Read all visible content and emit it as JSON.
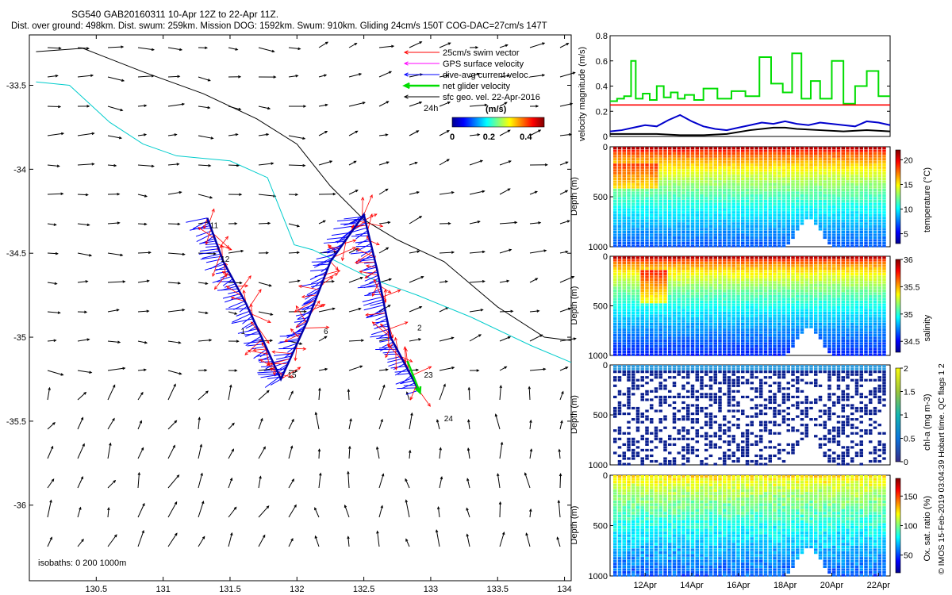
{
  "header": {
    "title": "SG540 GAB20160311 10-Apr 12Z to 22-Apr 11Z.",
    "summary": "Dist. over ground: 498km. Dist. swum: 259km. Mission DOG: 1592km. Swum: 910km. Gliding 24cm/s 150T COG-DAC=27cm/s 147T"
  },
  "side_note": "© IMOS 15-Feb-2019 03:04:39 Hobart time. QC flags 1  2",
  "map": {
    "legend": [
      {
        "label": "25cm/s swim vector",
        "color": "#ff0000",
        "style": "thin-arrow"
      },
      {
        "label": "GPS surface velocity",
        "color": "#ff00ff",
        "style": "thin-arrow"
      },
      {
        "label": "dive-avg current veloc.",
        "color": "#0000ff",
        "style": "thin-arrow"
      },
      {
        "label": "net glider velocity",
        "color": "#00dd00",
        "style": "thick-arrow"
      },
      {
        "label": "sfc geo. vel. 22-Apr-2016",
        "color": "#000000",
        "style": "thin-arrow"
      }
    ],
    "legend_24h": "24h",
    "colorbar": {
      "title": "(m/s)",
      "ticks": [
        "0",
        "0.2",
        "0.4"
      ],
      "range": [
        0,
        0.5
      ]
    },
    "isobath_note": "isobaths: 0   200   1000m",
    "chart_data": {
      "type": "map",
      "xlim": [
        130.0,
        134.05
      ],
      "ylim": [
        -36.45,
        -33.2
      ],
      "x_ticks": [
        130.5,
        131,
        131.5,
        132,
        132.5,
        133,
        133.5,
        134
      ],
      "x_tick_labels": [
        "130.5",
        "131",
        "131.5",
        "132",
        "132.5",
        "133",
        "133.5",
        "134"
      ],
      "y_ticks": [
        -33.5,
        -34,
        -34.5,
        -35,
        -35.5,
        -36
      ],
      "y_tick_labels": [
        "-33.5",
        "-34",
        "-34.5",
        "-35",
        "-35.5",
        "-36"
      ],
      "track": [
        [
          131.33,
          -34.29
        ],
        [
          131.45,
          -34.55
        ],
        [
          131.62,
          -34.8
        ],
        [
          131.88,
          -35.25
        ],
        [
          132.08,
          -34.9
        ],
        [
          132.25,
          -34.55
        ],
        [
          132.5,
          -34.27
        ],
        [
          132.6,
          -34.6
        ],
        [
          132.7,
          -35.0
        ],
        [
          132.92,
          -35.33
        ]
      ],
      "net_velocity_end": [
        132.92,
        -35.33
      ],
      "day_labels": [
        {
          "label": "11",
          "lon": 131.35,
          "lat": -34.35
        },
        {
          "label": "12",
          "lon": 131.43,
          "lat": -34.55
        },
        {
          "label": "15",
          "lon": 131.93,
          "lat": -35.24
        },
        {
          "label": "6",
          "lon": 132.2,
          "lat": -34.98
        },
        {
          "label": "2",
          "lon": 132.9,
          "lat": -34.96
        },
        {
          "label": "23",
          "lon": 132.95,
          "lat": -35.24
        },
        {
          "label": "24",
          "lon": 133.1,
          "lat": -35.5
        },
        {
          "label": "1",
          "lon": 131.58,
          "lat": -34.98
        }
      ],
      "isobath_200": [
        [
          130.05,
          -33.48
        ],
        [
          130.3,
          -33.5
        ],
        [
          130.6,
          -33.72
        ],
        [
          130.85,
          -33.85
        ],
        [
          131.1,
          -33.92
        ],
        [
          131.5,
          -33.95
        ],
        [
          131.78,
          -34.05
        ],
        [
          131.88,
          -34.25
        ],
        [
          131.98,
          -34.45
        ],
        [
          132.12,
          -34.48
        ],
        [
          132.3,
          -34.55
        ],
        [
          132.55,
          -34.65
        ],
        [
          132.9,
          -34.75
        ],
        [
          133.3,
          -34.88
        ],
        [
          133.75,
          -35.05
        ],
        [
          134.05,
          -35.15
        ]
      ],
      "isobath_1000": [
        [
          130.05,
          -33.3
        ],
        [
          130.4,
          -33.28
        ],
        [
          130.85,
          -33.42
        ],
        [
          131.3,
          -33.55
        ],
        [
          131.7,
          -33.7
        ],
        [
          132.0,
          -33.85
        ],
        [
          132.25,
          -34.1
        ],
        [
          132.5,
          -34.3
        ],
        [
          132.75,
          -34.42
        ],
        [
          133.1,
          -34.55
        ],
        [
          133.5,
          -34.82
        ],
        [
          133.85,
          -35.0
        ],
        [
          134.05,
          -35.02
        ]
      ]
    }
  },
  "velocity_panel": {
    "ylabel": "velocity magnitude (m/s)",
    "chart_data": {
      "type": "line",
      "xlim": [
        0,
        12
      ],
      "ylim": [
        0,
        0.8
      ],
      "y_ticks": [
        0,
        0.2,
        0.4,
        0.6,
        0.8
      ],
      "y_tick_labels": [
        "0",
        "0.2",
        "0.4",
        "0.6",
        "0.8"
      ],
      "series": [
        {
          "color": "#00dd00",
          "x": [
            0,
            0.3,
            0.3,
            0.6,
            0.6,
            0.9,
            0.9,
            1.1,
            1.1,
            1.4,
            1.4,
            1.7,
            1.7,
            2.0,
            2.0,
            2.3,
            2.3,
            2.6,
            2.6,
            2.9,
            2.9,
            3.2,
            3.2,
            3.6,
            3.6,
            4.0,
            4.0,
            4.6,
            4.6,
            5.2,
            5.2,
            5.8,
            5.8,
            6.4,
            6.4,
            6.9,
            6.9,
            7.4,
            7.4,
            7.8,
            7.8,
            8.2,
            8.2,
            8.6,
            8.6,
            9.0,
            9.0,
            9.5,
            9.5,
            10.0,
            10.0,
            10.5,
            10.5,
            11.0,
            11.0,
            11.5,
            11.5,
            12.0
          ],
          "y": [
            0.28,
            0.28,
            0.3,
            0.3,
            0.32,
            0.32,
            0.6,
            0.6,
            0.3,
            0.3,
            0.34,
            0.34,
            0.29,
            0.29,
            0.4,
            0.4,
            0.31,
            0.31,
            0.35,
            0.35,
            0.3,
            0.3,
            0.33,
            0.33,
            0.29,
            0.29,
            0.38,
            0.38,
            0.3,
            0.3,
            0.36,
            0.36,
            0.32,
            0.32,
            0.63,
            0.63,
            0.42,
            0.42,
            0.35,
            0.35,
            0.66,
            0.66,
            0.3,
            0.3,
            0.44,
            0.44,
            0.3,
            0.3,
            0.6,
            0.6,
            0.26,
            0.26,
            0.4,
            0.4,
            0.52,
            0.52,
            0.32,
            0.32
          ]
        },
        {
          "color": "#ff0000",
          "x": [
            0,
            12
          ],
          "y": [
            0.25,
            0.25
          ]
        },
        {
          "color": "#0000cc",
          "x": [
            0,
            0.5,
            1.0,
            1.5,
            2.0,
            2.5,
            3.0,
            3.5,
            4.0,
            4.5,
            5.0,
            5.5,
            6.0,
            6.5,
            7.0,
            7.5,
            8.0,
            8.5,
            9.0,
            9.5,
            10.0,
            10.5,
            11.0,
            11.5,
            12.0
          ],
          "y": [
            0.04,
            0.05,
            0.07,
            0.09,
            0.08,
            0.13,
            0.17,
            0.12,
            0.08,
            0.06,
            0.05,
            0.07,
            0.09,
            0.11,
            0.1,
            0.12,
            0.1,
            0.09,
            0.11,
            0.1,
            0.09,
            0.08,
            0.12,
            0.11,
            0.09
          ]
        },
        {
          "color": "#000000",
          "x": [
            0,
            1,
            2,
            3,
            4,
            5,
            6,
            6.5,
            7,
            7.5,
            8,
            9,
            10,
            11,
            12
          ],
          "y": [
            0.02,
            0.02,
            0.02,
            0.01,
            0.01,
            0.02,
            0.05,
            0.06,
            0.07,
            0.07,
            0.06,
            0.05,
            0.04,
            0.05,
            0.04
          ]
        }
      ]
    }
  },
  "profile_panels": [
    {
      "id": "temperature",
      "ylabel": "Depth (m)",
      "clabel": "temperature (°C)",
      "chart_data": {
        "type": "heatmap",
        "y_tick_labels": [
          "0",
          "500",
          "1000"
        ],
        "ylim": [
          0,
          1000
        ],
        "crange": [
          3,
          22
        ],
        "cticks": [
          5,
          10,
          15,
          20
        ],
        "ctick_labels": [
          "5",
          "10",
          "15",
          "20"
        ]
      }
    },
    {
      "id": "salinity",
      "ylabel": "Depth (m)",
      "clabel": "salinity",
      "chart_data": {
        "type": "heatmap",
        "y_tick_labels": [
          "0",
          "500",
          "1000"
        ],
        "ylim": [
          0,
          1000
        ],
        "crange": [
          34.3,
          36.0
        ],
        "cticks": [
          34.5,
          35,
          35.5,
          36
        ],
        "ctick_labels": [
          "34.5",
          "35",
          "35.5",
          "36"
        ]
      }
    },
    {
      "id": "chla",
      "ylabel": "Depth (m)",
      "clabel": "chl-a (mg m-3)",
      "chart_data": {
        "type": "heatmap",
        "y_tick_labels": [
          "0",
          "500",
          "1000"
        ],
        "ylim": [
          0,
          1000
        ],
        "crange": [
          0,
          2
        ],
        "cticks": [
          0,
          0.5,
          1,
          1.5,
          2
        ],
        "ctick_labels": [
          "0",
          "0.5",
          "1",
          "1.5",
          "2"
        ]
      }
    },
    {
      "id": "oxygen",
      "ylabel": "Depth (m)",
      "clabel": "Ox. sat. ratio (%)",
      "chart_data": {
        "type": "heatmap",
        "y_tick_labels": [
          "0",
          "500",
          "1000"
        ],
        "ylim": [
          0,
          1000
        ],
        "crange": [
          20,
          180
        ],
        "cticks": [
          50,
          100,
          150
        ],
        "ctick_labels": [
          "50",
          "100",
          "150"
        ]
      }
    }
  ],
  "time_axis": {
    "labels": [
      "12Apr",
      "14Apr",
      "16Apr",
      "18Apr",
      "20Apr",
      "22Apr"
    ],
    "positions": [
      1.5,
      3.5,
      5.5,
      7.5,
      9.5,
      11.5
    ],
    "xlim": [
      0,
      12
    ]
  }
}
